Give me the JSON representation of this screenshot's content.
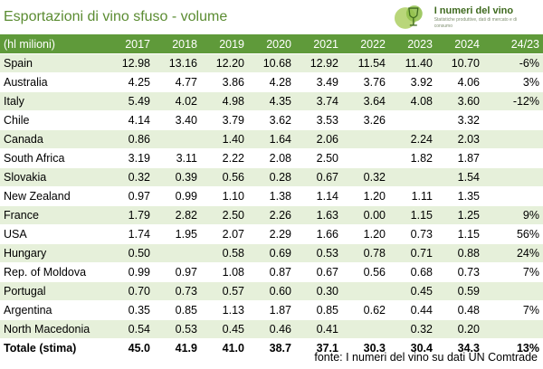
{
  "title": "Esportazioni di vino sfuso - volume",
  "logo": {
    "name": "I numeri del vino",
    "tagline": "Statistiche produttive, dati di mercato e di consumo",
    "icon": "wine-glass-icon"
  },
  "table": {
    "headers": [
      "(hl milioni)",
      "2017",
      "2018",
      "2019",
      "2020",
      "2021",
      "2022",
      "2023",
      "2024",
      "24/23"
    ],
    "rows": [
      [
        "Spain",
        "12.98",
        "13.16",
        "12.20",
        "10.68",
        "12.92",
        "11.54",
        "11.40",
        "10.70",
        "-6%"
      ],
      [
        "Australia",
        "4.25",
        "4.77",
        "3.86",
        "4.28",
        "3.49",
        "3.76",
        "3.92",
        "4.06",
        "3%"
      ],
      [
        "Italy",
        "5.49",
        "4.02",
        "4.98",
        "4.35",
        "3.74",
        "3.64",
        "4.08",
        "3.60",
        "-12%"
      ],
      [
        "Chile",
        "4.14",
        "3.40",
        "3.79",
        "3.62",
        "3.53",
        "3.26",
        "",
        "3.32",
        ""
      ],
      [
        "Canada",
        "0.86",
        "",
        "1.40",
        "1.64",
        "2.06",
        "",
        "2.24",
        "2.03",
        ""
      ],
      [
        "South Africa",
        "3.19",
        "3.11",
        "2.22",
        "2.08",
        "2.50",
        "",
        "1.82",
        "1.87",
        ""
      ],
      [
        "Slovakia",
        "0.32",
        "0.39",
        "0.56",
        "0.28",
        "0.67",
        "0.32",
        "",
        "1.54",
        ""
      ],
      [
        "New Zealand",
        "0.97",
        "0.99",
        "1.10",
        "1.38",
        "1.14",
        "1.20",
        "1.11",
        "1.35",
        ""
      ],
      [
        "France",
        "1.79",
        "2.82",
        "2.50",
        "2.26",
        "1.63",
        "0.00",
        "1.15",
        "1.25",
        "9%"
      ],
      [
        "USA",
        "1.74",
        "1.95",
        "2.07",
        "2.29",
        "1.66",
        "1.20",
        "0.73",
        "1.15",
        "56%"
      ],
      [
        "Hungary",
        "0.50",
        "",
        "0.58",
        "0.69",
        "0.53",
        "0.78",
        "0.71",
        "0.88",
        "24%"
      ],
      [
        "Rep. of Moldova",
        "0.99",
        "0.97",
        "1.08",
        "0.87",
        "0.67",
        "0.56",
        "0.68",
        "0.73",
        "7%"
      ],
      [
        "Portugal",
        "0.70",
        "0.73",
        "0.57",
        "0.60",
        "0.30",
        "",
        "0.45",
        "0.59",
        ""
      ],
      [
        "Argentina",
        "0.35",
        "0.85",
        "1.13",
        "1.87",
        "0.85",
        "0.62",
        "0.44",
        "0.48",
        "7%"
      ],
      [
        "North Macedonia",
        "0.54",
        "0.53",
        "0.45",
        "0.46",
        "0.41",
        "",
        "0.32",
        "0.20",
        ""
      ]
    ],
    "total": [
      "Totale (stima)",
      "45.0",
      "41.9",
      "41.0",
      "38.7",
      "37.1",
      "30.3",
      "30.4",
      "34.3",
      "13%"
    ]
  },
  "source": "fonte: I numeri del vino su dati UN Comtrade",
  "colors": {
    "header_bg": "#5f9a3a",
    "title": "#5b8c32",
    "stripe": "#e6f0da"
  }
}
